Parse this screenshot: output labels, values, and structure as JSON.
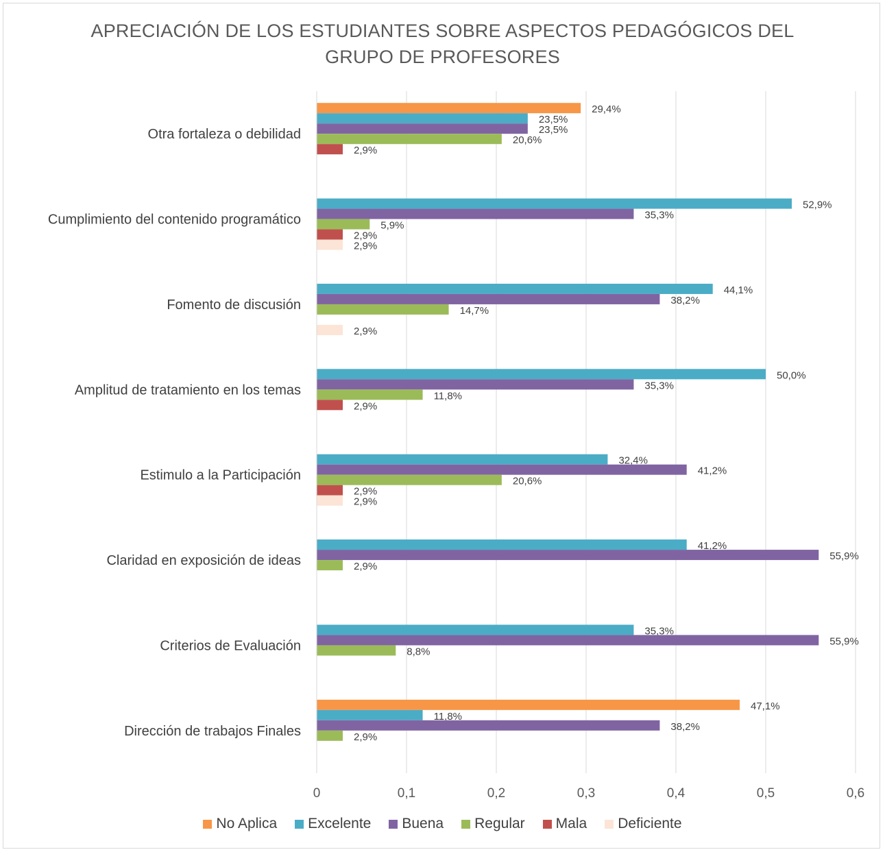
{
  "chart_data": {
    "type": "bar",
    "orientation": "horizontal",
    "title_line1": "APRECIACIÓN DE LOS ESTUDIANTES SOBRE ASPECTOS PEDAGÓGICOS DEL",
    "title_line2": "GRUPO DE PROFESORES",
    "categories": [
      "Otra fortaleza o debilidad",
      "Cumplimiento del contenido programático",
      "Fomento de discusión",
      "Amplitud de tratamiento en los temas",
      "Estimulo a la Participación",
      "Claridad en exposición de ideas",
      "Criterios de Evaluación",
      "Dirección de trabajos Finales"
    ],
    "series": [
      {
        "name": "No Aplica",
        "color": "#f79646",
        "values": [
          0.294,
          null,
          null,
          null,
          null,
          null,
          null,
          0.471
        ],
        "labels": [
          "29,4%",
          null,
          null,
          null,
          null,
          null,
          null,
          "47,1%"
        ]
      },
      {
        "name": "Excelente",
        "color": "#4bacc6",
        "values": [
          0.235,
          0.529,
          0.441,
          0.5,
          0.324,
          0.412,
          0.353,
          0.118
        ],
        "labels": [
          "23,5%",
          "52,9%",
          "44,1%",
          "50,0%",
          "32,4%",
          "41,2%",
          "35,3%",
          "11,8%"
        ]
      },
      {
        "name": "Buena",
        "color": "#8064a2",
        "values": [
          0.235,
          0.353,
          0.382,
          0.353,
          0.412,
          0.559,
          0.559,
          0.382
        ],
        "labels": [
          "23,5%",
          "35,3%",
          "38,2%",
          "35,3%",
          "41,2%",
          "55,9%",
          "55,9%",
          "38,2%"
        ]
      },
      {
        "name": "Regular",
        "color": "#9bbb59",
        "values": [
          0.206,
          0.059,
          0.147,
          0.118,
          0.206,
          0.029,
          0.088,
          0.029
        ],
        "labels": [
          "20,6%",
          "5,9%",
          "14,7%",
          "11,8%",
          "20,6%",
          "2,9%",
          "8,8%",
          "2,9%"
        ]
      },
      {
        "name": "Mala",
        "color": "#c0504d",
        "values": [
          0.029,
          0.029,
          null,
          0.029,
          0.029,
          null,
          null,
          null
        ],
        "labels": [
          "2,9%",
          "2,9%",
          null,
          "2,9%",
          "2,9%",
          null,
          null,
          null
        ]
      },
      {
        "name": "Deficiente",
        "color": "#fce4d6",
        "values": [
          null,
          0.029,
          0.029,
          null,
          0.029,
          null,
          null,
          null
        ],
        "labels": [
          null,
          "2,9%",
          "2,9%",
          null,
          "2,9%",
          null,
          null,
          null
        ]
      }
    ],
    "x_ticks": [
      "0",
      "0,1",
      "0,2",
      "0,3",
      "0,4",
      "0,5",
      "0,6"
    ],
    "xlim": [
      0,
      0.6
    ],
    "grid": true,
    "legend_position": "bottom"
  }
}
